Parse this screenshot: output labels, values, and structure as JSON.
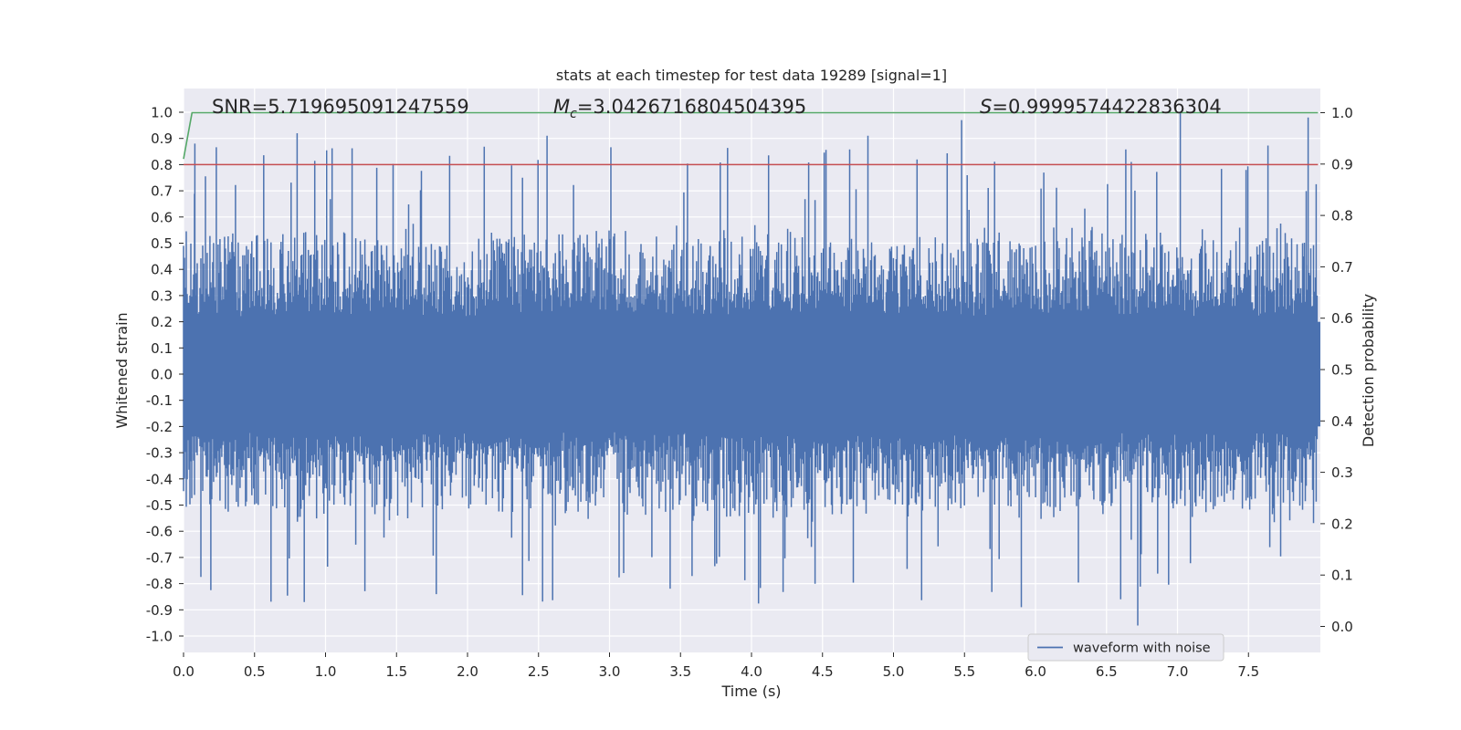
{
  "chart_data": {
    "type": "line",
    "title": "stats at each timestep for test data 19289 [signal=1]",
    "xlabel": "Time (s)",
    "ylabel_left": "Whitened strain",
    "ylabel_right": "Detection probability",
    "xlim": [
      0.0,
      7.99
    ],
    "ylim_left": [
      -1.05,
      1.05
    ],
    "ylim_right": [
      -0.045,
      1.0
    ],
    "x_ticks": [
      "0.0",
      "0.5",
      "1.0",
      "1.5",
      "2.0",
      "2.5",
      "3.0",
      "3.5",
      "4.0",
      "4.5",
      "5.0",
      "5.5",
      "6.0",
      "6.5",
      "7.0",
      "7.5"
    ],
    "y_left_ticks": [
      "1.0",
      "0.9",
      "0.8",
      "0.7",
      "0.6",
      "0.5",
      "0.4",
      "0.3",
      "0.2",
      "0.1",
      "0.0",
      "-0.1",
      "-0.2",
      "-0.3",
      "-0.4",
      "-0.5",
      "-0.6",
      "-0.7",
      "-0.8",
      "-0.9",
      "-1.0"
    ],
    "y_right_ticks": [
      "1.0",
      "0.9",
      "0.8",
      "0.7",
      "0.6",
      "0.5",
      "0.4",
      "0.3",
      "0.2",
      "0.1",
      "0.0"
    ],
    "annotations": {
      "snr": "SNR=5.719695091247559",
      "mc_symbol": "M",
      "mc_sub": "c",
      "mc_value": "=3.0426716804504395",
      "s_symbol": "S",
      "s_value": "=0.9999574422836304"
    },
    "grid": true,
    "legend": {
      "position": "lower-right",
      "entries": [
        "waveform with noise"
      ]
    },
    "series": [
      {
        "name": "waveform with noise",
        "axis": "left",
        "color": "#4c72b0",
        "description_range": [
          -0.96,
          1.0
        ],
        "sample_rate_hz": 2048,
        "duration_s": 7.99
      },
      {
        "axis": "left",
        "color": "#c44e52",
        "x": [
          0.0,
          7.99
        ],
        "y": [
          0.8,
          0.8
        ]
      },
      {
        "axis": "right",
        "color": "#55a868",
        "x": [
          0.0,
          0.06,
          7.99
        ],
        "y": [
          0.91,
          1.0,
          1.0
        ]
      }
    ],
    "colors": {
      "axes_bg": "#eaeaf2",
      "grid": "#ffffff",
      "waveform": "#4c72b0",
      "threshold": "#c44e52",
      "probability": "#55a868"
    }
  }
}
